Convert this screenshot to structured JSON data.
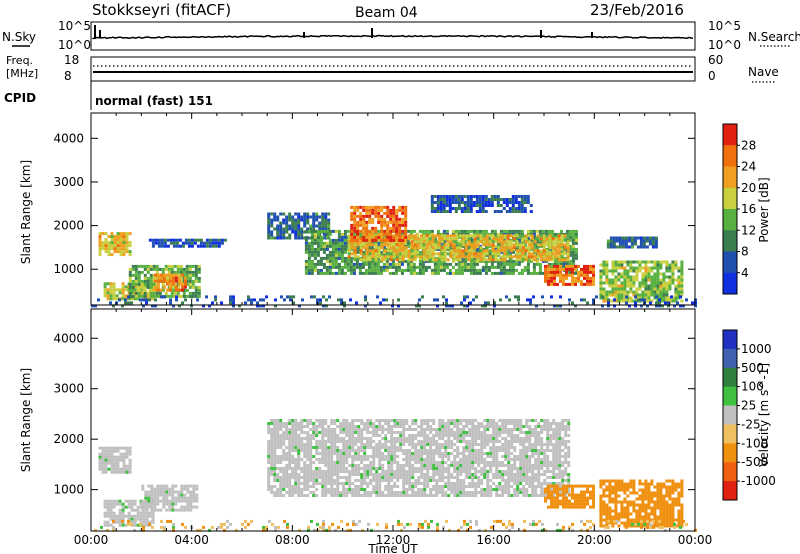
{
  "header": {
    "station": "Stokkseyri (fitACF)",
    "beam": "Beam 04",
    "date": "23/Feb/2016"
  },
  "status_panel": {
    "left_label": "N.Sky",
    "right_label": "N.Search",
    "y_ticks_left": [
      "10^5",
      "10^0"
    ],
    "y_ticks_right": [
      "10^5",
      "10^0"
    ]
  },
  "freq_panel": {
    "left_label_line1": "Freq.",
    "left_label_line2": "[MHz]",
    "right_label": "Nave",
    "y_ticks_left": [
      "18",
      "8"
    ],
    "y_ticks_right": [
      "60",
      "0"
    ],
    "cpid_label": "CPID",
    "cpid_value": "normal (fast) 151"
  },
  "colors": {
    "power": [
      "#1030e0",
      "#2050b0",
      "#3b7d4f",
      "#58b040",
      "#c8d040",
      "#f0a020",
      "#f07010",
      "#e02010"
    ],
    "velocity": [
      "#2030c0",
      "#4060b0",
      "#308040",
      "#40c040",
      "#c0c0c0",
      "#f0c060",
      "#f09010",
      "#f06010",
      "#e02010"
    ],
    "ground_scatter": "#c0c0c0"
  },
  "chart_data": [
    {
      "type": "heatmap",
      "name": "power",
      "ylabel": "Slant Range [km]",
      "ylim": [
        180,
        4580
      ],
      "y_ticks": [
        "1000",
        "2000",
        "3000",
        "4000"
      ],
      "x_ticks": [
        "00:00",
        "04:00",
        "08:00",
        "12:00",
        "16:00",
        "20:00",
        "00:00"
      ],
      "colorbar": {
        "label": "Power [dB]",
        "ticks": [
          "4",
          "8",
          "12",
          "16",
          "20",
          "24",
          "28"
        ],
        "range": [
          0,
          32
        ]
      },
      "regions": [
        {
          "t0": 0.3,
          "t1": 1.5,
          "r0": 1350,
          "r1": 1850,
          "level": 20
        },
        {
          "t0": 0.5,
          "t1": 2.5,
          "r0": 300,
          "r1": 700,
          "level": 18
        },
        {
          "t0": 1.5,
          "t1": 4.3,
          "r0": 400,
          "r1": 1100,
          "level": 14
        },
        {
          "t0": 2.5,
          "t1": 3.8,
          "r0": 500,
          "r1": 900,
          "level": 24
        },
        {
          "t0": 2.3,
          "t1": 5.3,
          "r0": 1550,
          "r1": 1700,
          "level": 6
        },
        {
          "t0": 7.0,
          "t1": 9.5,
          "r0": 1700,
          "r1": 2300,
          "level": 8
        },
        {
          "t0": 8.5,
          "t1": 19.3,
          "r0": 900,
          "r1": 1900,
          "level": 12
        },
        {
          "t0": 10.2,
          "t1": 19.0,
          "r0": 1200,
          "r1": 1800,
          "level": 20
        },
        {
          "t0": 10.3,
          "t1": 12.5,
          "r0": 1650,
          "r1": 2450,
          "level": 26
        },
        {
          "t0": 13.5,
          "t1": 17.5,
          "r0": 2300,
          "r1": 2700,
          "level": 6
        },
        {
          "t0": 18.0,
          "t1": 20.0,
          "r0": 650,
          "r1": 1100,
          "level": 26
        },
        {
          "t0": 20.2,
          "t1": 23.5,
          "r0": 300,
          "r1": 1200,
          "level": 16
        },
        {
          "t0": 20.5,
          "t1": 22.5,
          "r0": 1500,
          "r1": 1750,
          "level": 8
        },
        {
          "t0": 0.0,
          "t1": 24.0,
          "r0": 180,
          "r1": 400,
          "level": 6
        }
      ]
    },
    {
      "type": "heatmap",
      "name": "velocity",
      "ylabel": "Slant Range [km]",
      "xlabel": "Time UT",
      "ylim": [
        180,
        4580
      ],
      "y_ticks": [
        "1000",
        "2000",
        "3000",
        "4000"
      ],
      "x_ticks": [
        "00:00",
        "04:00",
        "08:00",
        "12:00",
        "16:00",
        "20:00",
        "00:00"
      ],
      "colorbar": {
        "label": "Velocity [m s^-1]",
        "ticks": [
          "1000",
          "500",
          "100",
          "25",
          "-25",
          "-100",
          "-500",
          "-1000"
        ]
      },
      "regions": [
        {
          "t0": 0.3,
          "t1": 1.5,
          "r0": 1350,
          "r1": 1850,
          "level": "ground"
        },
        {
          "t0": 0.5,
          "t1": 2.5,
          "r0": 300,
          "r1": 800,
          "level": "ground"
        },
        {
          "t0": 2.0,
          "t1": 4.2,
          "r0": 600,
          "r1": 1100,
          "level": "ground"
        },
        {
          "t0": 7.0,
          "t1": 19.0,
          "r0": 900,
          "r1": 2400,
          "level": "ground"
        },
        {
          "t0": 18.0,
          "t1": 20.0,
          "r0": 650,
          "r1": 1100,
          "level": -300
        },
        {
          "t0": 20.2,
          "t1": 23.5,
          "r0": 300,
          "r1": 1200,
          "level": -300
        },
        {
          "t0": 0.0,
          "t1": 24.0,
          "r0": 180,
          "r1": 400,
          "level": -50
        }
      ]
    }
  ]
}
